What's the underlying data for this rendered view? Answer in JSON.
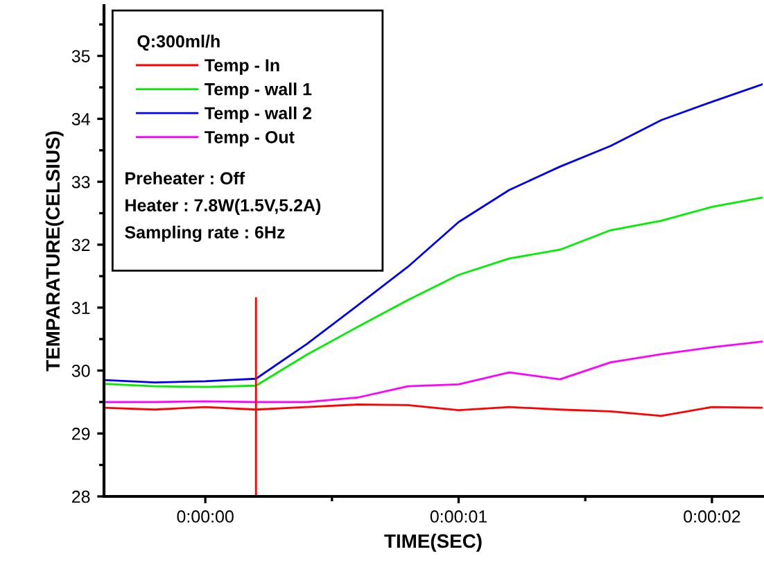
{
  "chart_data": {
    "type": "line",
    "xlabel": "TIME(SEC)",
    "ylabel": "TEMPARATURE(CELSIUS)",
    "legend_title": "Q:300ml/h",
    "x": [
      -0.4,
      -0.2,
      0,
      0.2,
      0.4,
      0.6,
      0.8,
      1.0,
      1.2,
      1.4,
      1.6,
      1.8,
      2.0,
      2.2
    ],
    "series": [
      {
        "name": "Temp - In",
        "color": "#ff0000",
        "values": [
          29.41,
          29.38,
          29.42,
          29.38,
          29.42,
          29.46,
          29.45,
          29.37,
          29.42,
          29.38,
          29.35,
          29.28,
          29.42,
          29.41
        ]
      },
      {
        "name": "Temp - wall 1",
        "color": "#00ee00",
        "values": [
          29.79,
          29.75,
          29.74,
          29.76,
          30.25,
          30.69,
          31.12,
          31.52,
          31.78,
          31.92,
          32.23,
          32.38,
          32.6,
          32.75
        ]
      },
      {
        "name": "Temp - wall 2",
        "color": "#0000ee",
        "values": [
          29.85,
          29.81,
          29.83,
          29.87,
          30.42,
          31.03,
          31.65,
          32.36,
          32.87,
          33.24,
          33.57,
          33.98,
          34.27,
          34.55
        ]
      },
      {
        "name": "Temp - Out",
        "color": "#ff00ff",
        "values": [
          29.5,
          29.5,
          29.51,
          29.5,
          29.5,
          29.57,
          29.75,
          29.78,
          29.97,
          29.86,
          30.13,
          30.26,
          30.37,
          30.46
        ]
      },
      {
        "color": "#ff0000",
        "x": [
          0.2,
          0.2
        ],
        "values": [
          28,
          31.15
        ]
      }
    ],
    "annotations": [
      "Preheater : Off",
      "Heater : 7.8W(1.5V,5.2A)",
      "Sampling rate : 6Hz"
    ],
    "xlim": [
      -0.4,
      2.2
    ],
    "ylim": [
      28,
      35.8
    ],
    "xticks": [
      {
        "value": 0,
        "label": "0:00:00"
      },
      {
        "value": 0.5,
        "label": null
      },
      {
        "value": 1,
        "label": "0:00:01"
      },
      {
        "value": 1.5,
        "label": null
      },
      {
        "value": 2,
        "label": "0:00:02"
      }
    ],
    "yticks": [
      28,
      {
        "value": 28.5,
        "label": null
      },
      29,
      {
        "value": 29.5,
        "label": null
      },
      30,
      {
        "value": 30.5,
        "label": null
      },
      31,
      {
        "value": 31.5,
        "label": null
      },
      32,
      {
        "value": 32.5,
        "label": null
      },
      33,
      {
        "value": 33.5,
        "label": null
      },
      34,
      {
        "value": 34.5,
        "label": null
      },
      35,
      {
        "value": 35.5,
        "label": null
      }
    ],
    "legend": "top left",
    "grid": false,
    "marker": "none",
    "line_style": "solid"
  }
}
